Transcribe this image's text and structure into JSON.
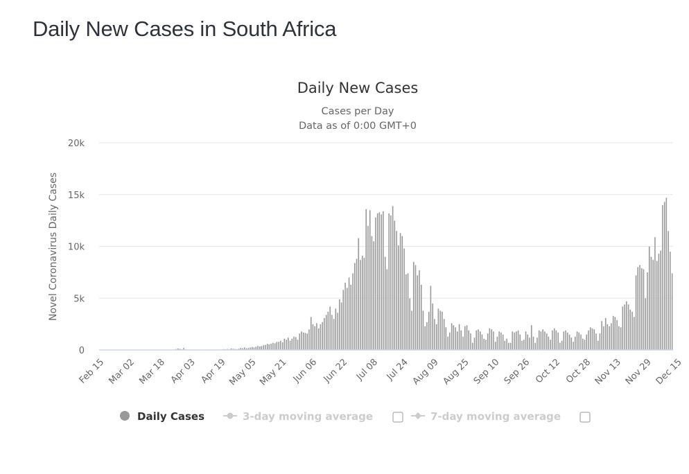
{
  "page": {
    "title": "Daily New Cases in South Africa"
  },
  "chart_data": {
    "type": "bar",
    "title": "Daily New Cases",
    "subtitle_lines": [
      "Cases per Day",
      "Data as of 0:00 GMT+0"
    ],
    "xlabel": "",
    "ylabel": "Novel Coronavirus Daily Cases",
    "ylim": [
      0,
      20000
    ],
    "y_ticks": [
      0,
      5000,
      10000,
      15000,
      20000
    ],
    "y_tick_labels": [
      "0",
      "5k",
      "10k",
      "15k",
      "20k"
    ],
    "x_tick_labels": [
      "Feb 15",
      "Mar 02",
      "Mar 18",
      "Apr 03",
      "Apr 19",
      "May 05",
      "May 21",
      "Jun 06",
      "Jun 22",
      "Jul 08",
      "Jul 24",
      "Aug 09",
      "Aug 25",
      "Sep 10",
      "Sep 26",
      "Oct 12",
      "Oct 28",
      "Nov 13",
      "Nov 29",
      "Dec 15"
    ],
    "x_tick_interval_days": 16,
    "start_date": "Feb 15",
    "grid": true,
    "bar_color": "#999999",
    "axis_line_color": "#ccd6eb",
    "series": [
      {
        "name": "Daily Cases",
        "visible": true,
        "values": [
          0,
          0,
          0,
          0,
          0,
          0,
          0,
          0,
          0,
          0,
          0,
          0,
          0,
          0,
          0,
          0,
          0,
          0,
          0,
          0,
          0,
          0,
          0,
          0,
          0,
          0,
          0,
          0,
          0,
          0,
          0,
          0,
          0,
          0,
          0,
          0,
          0,
          0,
          0,
          0,
          100,
          150,
          120,
          80,
          200,
          60,
          40,
          20,
          30,
          40,
          30,
          50,
          20,
          20,
          30,
          20,
          40,
          30,
          40,
          20,
          50,
          30,
          40,
          60,
          40,
          90,
          70,
          100,
          60,
          150,
          120,
          100,
          90,
          130,
          200,
          180,
          250,
          170,
          200,
          250,
          300,
          250,
          320,
          400,
          350,
          380,
          460,
          500,
          600,
          550,
          620,
          700,
          650,
          780,
          800,
          900,
          750,
          1100,
          1000,
          1200,
          900,
          1100,
          1300,
          1250,
          1000,
          1600,
          1800,
          1700,
          1650,
          1600,
          2000,
          3200,
          2500,
          2300,
          2600,
          2100,
          2500,
          2700,
          3100,
          3400,
          3700,
          4200,
          3400,
          3000,
          4000,
          3600,
          4900,
          4600,
          5800,
          6500,
          6000,
          7000,
          6300,
          7400,
          8400,
          8800,
          10800,
          8700,
          9100,
          8900,
          13600,
          12000,
          13500,
          11000,
          10500,
          12800,
          13200,
          13300,
          13100,
          13400,
          9000,
          7800,
          13200,
          13000,
          13900,
          12500,
          11500,
          10100,
          11300,
          11000,
          9800,
          7300,
          7400,
          5000,
          3800,
          8500,
          8200,
          7200,
          7700,
          6300,
          3800,
          2300,
          2700,
          3700,
          6200,
          4500,
          3000,
          2500,
          4000,
          3800,
          3700,
          3000,
          2200,
          1300,
          1700,
          2600,
          2400,
          2200,
          1800,
          2500,
          1900,
          1300,
          2300,
          2400,
          1900,
          1600,
          700,
          1200,
          1900,
          2000,
          1800,
          1500,
          1100,
          1000,
          1600,
          2100,
          2000,
          1800,
          800,
          1300,
          1800,
          1700,
          1500,
          900,
          1100,
          700,
          700,
          1800,
          1700,
          1800,
          1900,
          1500,
          900,
          1000,
          1800,
          1500,
          1200,
          2400,
          1300,
          700,
          1200,
          1900,
          1800,
          2000,
          1800,
          1600,
          1300,
          1000,
          1900,
          2100,
          1900,
          1700,
          700,
          900,
          1800,
          1900,
          1700,
          1500,
          1200,
          800,
          1300,
          1800,
          1700,
          1500,
          1100,
          1000,
          1500,
          1900,
          2200,
          2100,
          2000,
          1600,
          900,
          1600,
          2800,
          2300,
          3100,
          2500,
          2300,
          2600,
          3300,
          3200,
          2900,
          2300,
          2200,
          4200,
          4400,
          4700,
          4400,
          3900,
          3700,
          3200,
          7200,
          8000,
          8200,
          7900,
          7800,
          5000,
          7500,
          10000,
          9000,
          8700,
          10900,
          8600,
          9300,
          9600,
          14000,
          14300,
          14700,
          11500,
          9500,
          7400
        ]
      },
      {
        "name": "3-day moving average",
        "visible": false
      },
      {
        "name": "7-day moving average",
        "visible": false
      }
    ],
    "legend": {
      "position": "bottom",
      "items": [
        {
          "label": "Daily Cases",
          "color": "#999999",
          "active": true
        },
        {
          "label": "3-day moving average",
          "color": "#cccccc",
          "active": false
        },
        {
          "label": "7-day moving average",
          "color": "#cccccc",
          "active": false
        }
      ]
    }
  }
}
